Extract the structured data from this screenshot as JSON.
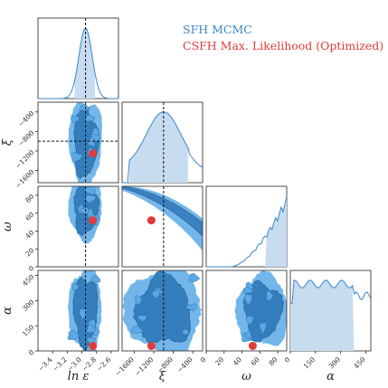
{
  "legend": {
    "mcmc_label": "SFH MCMC",
    "ml_label": "CSFH Max. Likelihood (Optimized)",
    "mcmc_color": "#3a86c8",
    "ml_color": "#e03b3b"
  },
  "chart_data": {
    "type": "corner",
    "parameters": [
      {
        "name": "ln ε",
        "label": "ln ε",
        "range": [
          -3.6,
          -2.5
        ],
        "ticks": [
          -3.4,
          -3.2,
          -3.0,
          -2.8,
          -2.6
        ],
        "tick_labels": [
          "−3.4",
          "−3.2",
          "−3.0",
          "−2.8",
          "−2.6"
        ],
        "median": -2.95,
        "ci": [
          -3.1,
          -2.82
        ],
        "ml": -2.85
      },
      {
        "name": "ξ",
        "label": "ξ",
        "range": [
          -1850,
          -200
        ],
        "ticks": [
          -1600,
          -1200,
          -800,
          -400
        ],
        "tick_labels": [
          "−1600",
          "−1200",
          "−800",
          "−400"
        ],
        "median": -1000,
        "ci": [
          -1700,
          -500
        ],
        "ml": -1250
      },
      {
        "name": "ω",
        "label": "ω",
        "range": [
          0,
          90
        ],
        "ticks": [
          0,
          20,
          40,
          60,
          80
        ],
        "tick_labels": [
          "0",
          "20",
          "40",
          "60",
          "80"
        ],
        "median": null,
        "ci": [
          66,
          90
        ],
        "ml": 52
      },
      {
        "name": "α",
        "label": "α",
        "range": [
          0,
          480
        ],
        "ticks": [
          0,
          150,
          300,
          450
        ],
        "tick_labels": [
          "0",
          "150",
          "300",
          "450"
        ],
        "median": null,
        "ci": [
          0,
          380
        ],
        "ml": 30
      }
    ],
    "grid": false,
    "legend_position": "top-right"
  }
}
